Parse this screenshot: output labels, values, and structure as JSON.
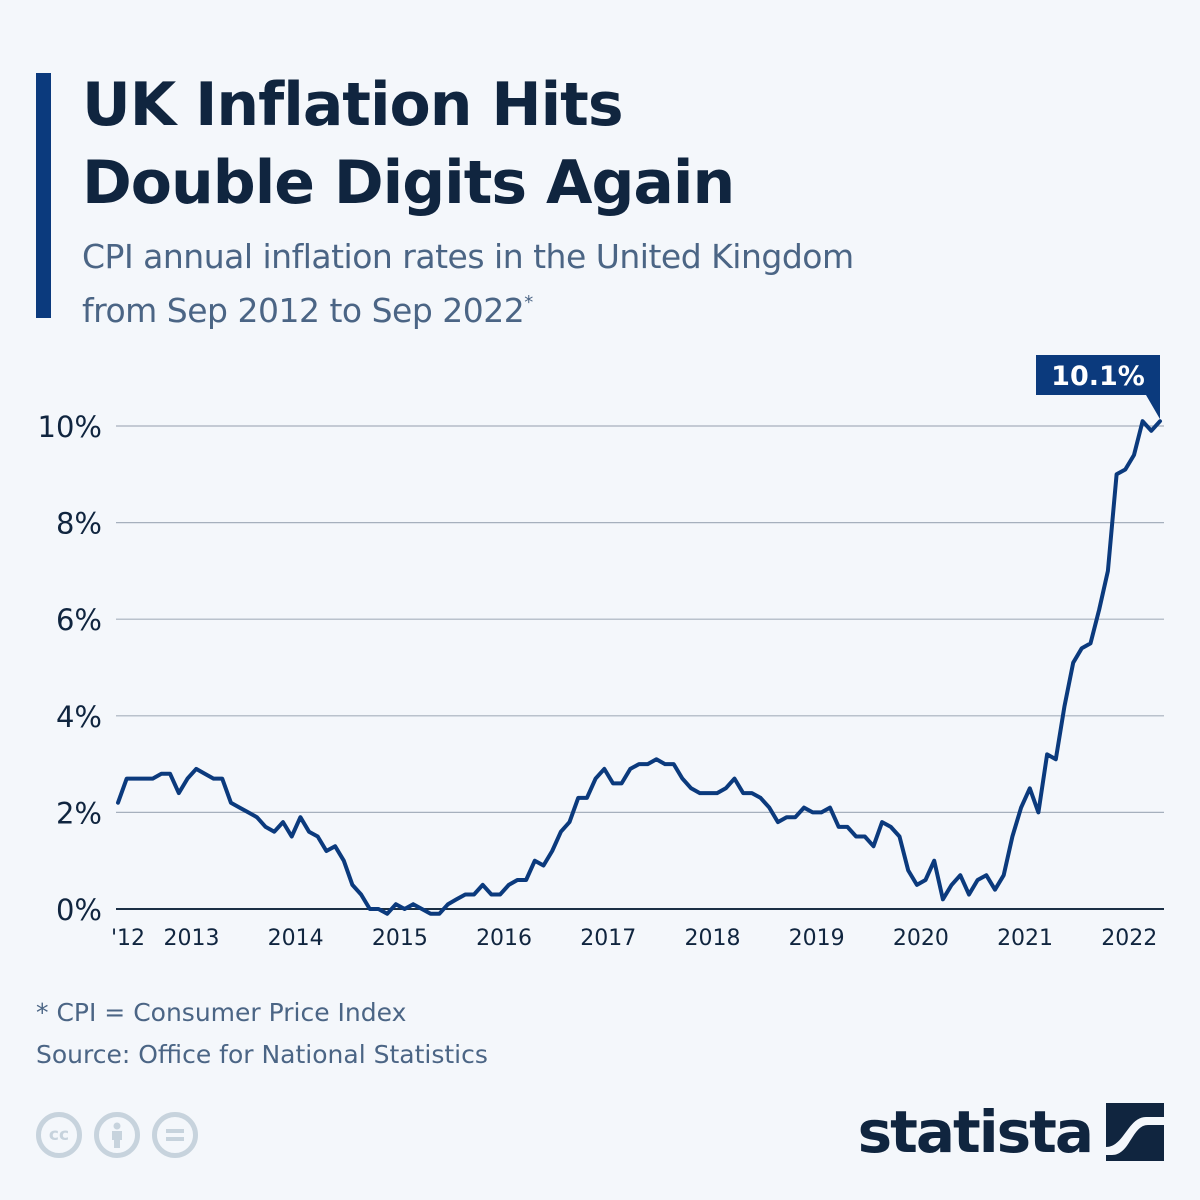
{
  "header": {
    "title_line1": "UK Inflation Hits",
    "title_line2": "Double Digits Again",
    "subtitle_line1": "CPI annual inflation rates in the United Kingdom",
    "subtitle_line2": "from Sep 2012 to Sep 2022",
    "subtitle_marker": "*"
  },
  "footer": {
    "note": "* CPI = Consumer Price Index",
    "source": "Source: Office for National Statistics",
    "license_icons": [
      "cc-icon",
      "attribution-icon",
      "no-derivatives-icon"
    ],
    "brand": "statista"
  },
  "colors": {
    "line": "#0b3a7d",
    "accent": "#0b3a7d",
    "title": "#10253f",
    "subtitle": "#4b6585",
    "grid": "#a6b0bd",
    "baseline": "#1b2f45",
    "background": "#f4f7fb"
  },
  "chart_data": {
    "type": "line",
    "title": "UK Inflation Hits Double Digits Again",
    "subtitle": "CPI annual inflation rates in the United Kingdom from Sep 2012 to Sep 2022*",
    "xlabel": "",
    "ylabel": "",
    "x_start": "Sep 2012",
    "x_end": "Sep 2022",
    "x_interval": "monthly",
    "x_ticks": [
      {
        "label": "'12",
        "month_index": 0
      },
      {
        "label": "2013",
        "month_index": 8
      },
      {
        "label": "2014",
        "month_index": 20
      },
      {
        "label": "2015",
        "month_index": 32
      },
      {
        "label": "2016",
        "month_index": 44
      },
      {
        "label": "2017",
        "month_index": 56
      },
      {
        "label": "2018",
        "month_index": 68
      },
      {
        "label": "2019",
        "month_index": 80
      },
      {
        "label": "2020",
        "month_index": 92
      },
      {
        "label": "2021",
        "month_index": 104
      },
      {
        "label": "2022",
        "month_index": 116
      }
    ],
    "y_ticks": [
      "0%",
      "2%",
      "4%",
      "6%",
      "8%",
      "10%"
    ],
    "y_tick_values": [
      0,
      2,
      4,
      6,
      8,
      10
    ],
    "ylim": [
      0,
      10
    ],
    "grid": true,
    "legend": "none",
    "annotation": {
      "label": "10.1%",
      "value": 10.1,
      "at": "Sep 2022"
    },
    "series": [
      {
        "name": "CPI annual inflation rate (%)",
        "values": [
          2.2,
          2.7,
          2.7,
          2.7,
          2.7,
          2.8,
          2.8,
          2.4,
          2.7,
          2.9,
          2.8,
          2.7,
          2.7,
          2.2,
          2.1,
          2.0,
          1.9,
          1.7,
          1.6,
          1.8,
          1.5,
          1.9,
          1.6,
          1.5,
          1.2,
          1.3,
          1.0,
          0.5,
          0.3,
          0.0,
          0.0,
          -0.1,
          0.1,
          0.0,
          0.1,
          0.0,
          -0.1,
          -0.1,
          0.1,
          0.2,
          0.3,
          0.3,
          0.5,
          0.3,
          0.3,
          0.5,
          0.6,
          0.6,
          1.0,
          0.9,
          1.2,
          1.6,
          1.8,
          2.3,
          2.3,
          2.7,
          2.9,
          2.6,
          2.6,
          2.9,
          3.0,
          3.0,
          3.1,
          3.0,
          3.0,
          2.7,
          2.5,
          2.4,
          2.4,
          2.4,
          2.5,
          2.7,
          2.4,
          2.4,
          2.3,
          2.1,
          1.8,
          1.9,
          1.9,
          2.1,
          2.0,
          2.0,
          2.1,
          1.7,
          1.7,
          1.5,
          1.5,
          1.3,
          1.8,
          1.7,
          1.5,
          0.8,
          0.5,
          0.6,
          1.0,
          0.2,
          0.5,
          0.7,
          0.3,
          0.6,
          0.7,
          0.4,
          0.7,
          1.5,
          2.1,
          2.5,
          2.0,
          3.2,
          3.1,
          4.2,
          5.1,
          5.4,
          5.5,
          6.2,
          7.0,
          9.0,
          9.1,
          9.4,
          10.1,
          9.9,
          10.1
        ]
      }
    ]
  }
}
